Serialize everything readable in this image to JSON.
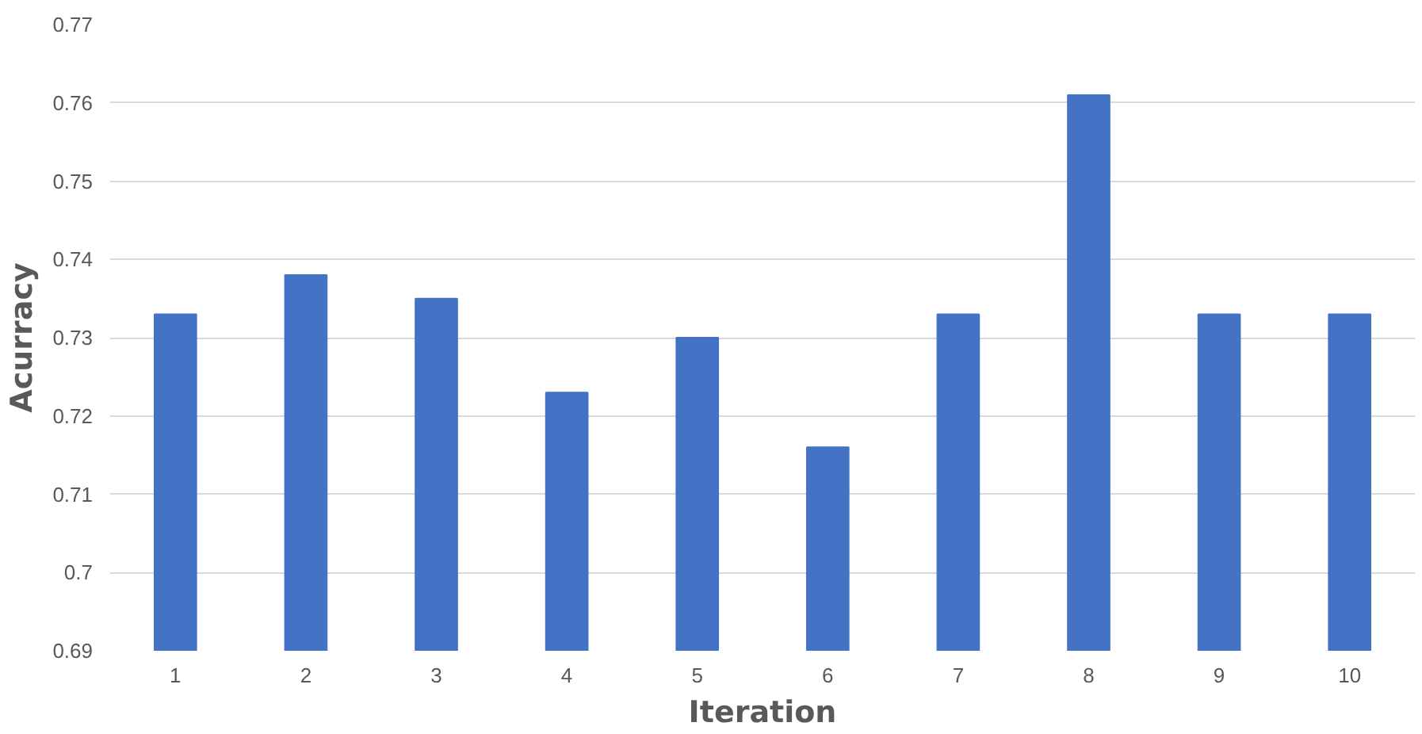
{
  "chart_data": {
    "type": "bar",
    "xlabel": "Iteration",
    "ylabel": "Acurracy",
    "categories": [
      "1",
      "2",
      "3",
      "4",
      "5",
      "6",
      "7",
      "8",
      "9",
      "10"
    ],
    "values": [
      0.733,
      0.738,
      0.735,
      0.723,
      0.73,
      0.716,
      0.733,
      0.761,
      0.733,
      0.733
    ],
    "color": "#4472c4",
    "ylim": [
      0.69,
      0.77
    ],
    "yticks": [
      0.69,
      0.7,
      0.71,
      0.72,
      0.73,
      0.74,
      0.75,
      0.76,
      0.77
    ],
    "grid": "y"
  }
}
